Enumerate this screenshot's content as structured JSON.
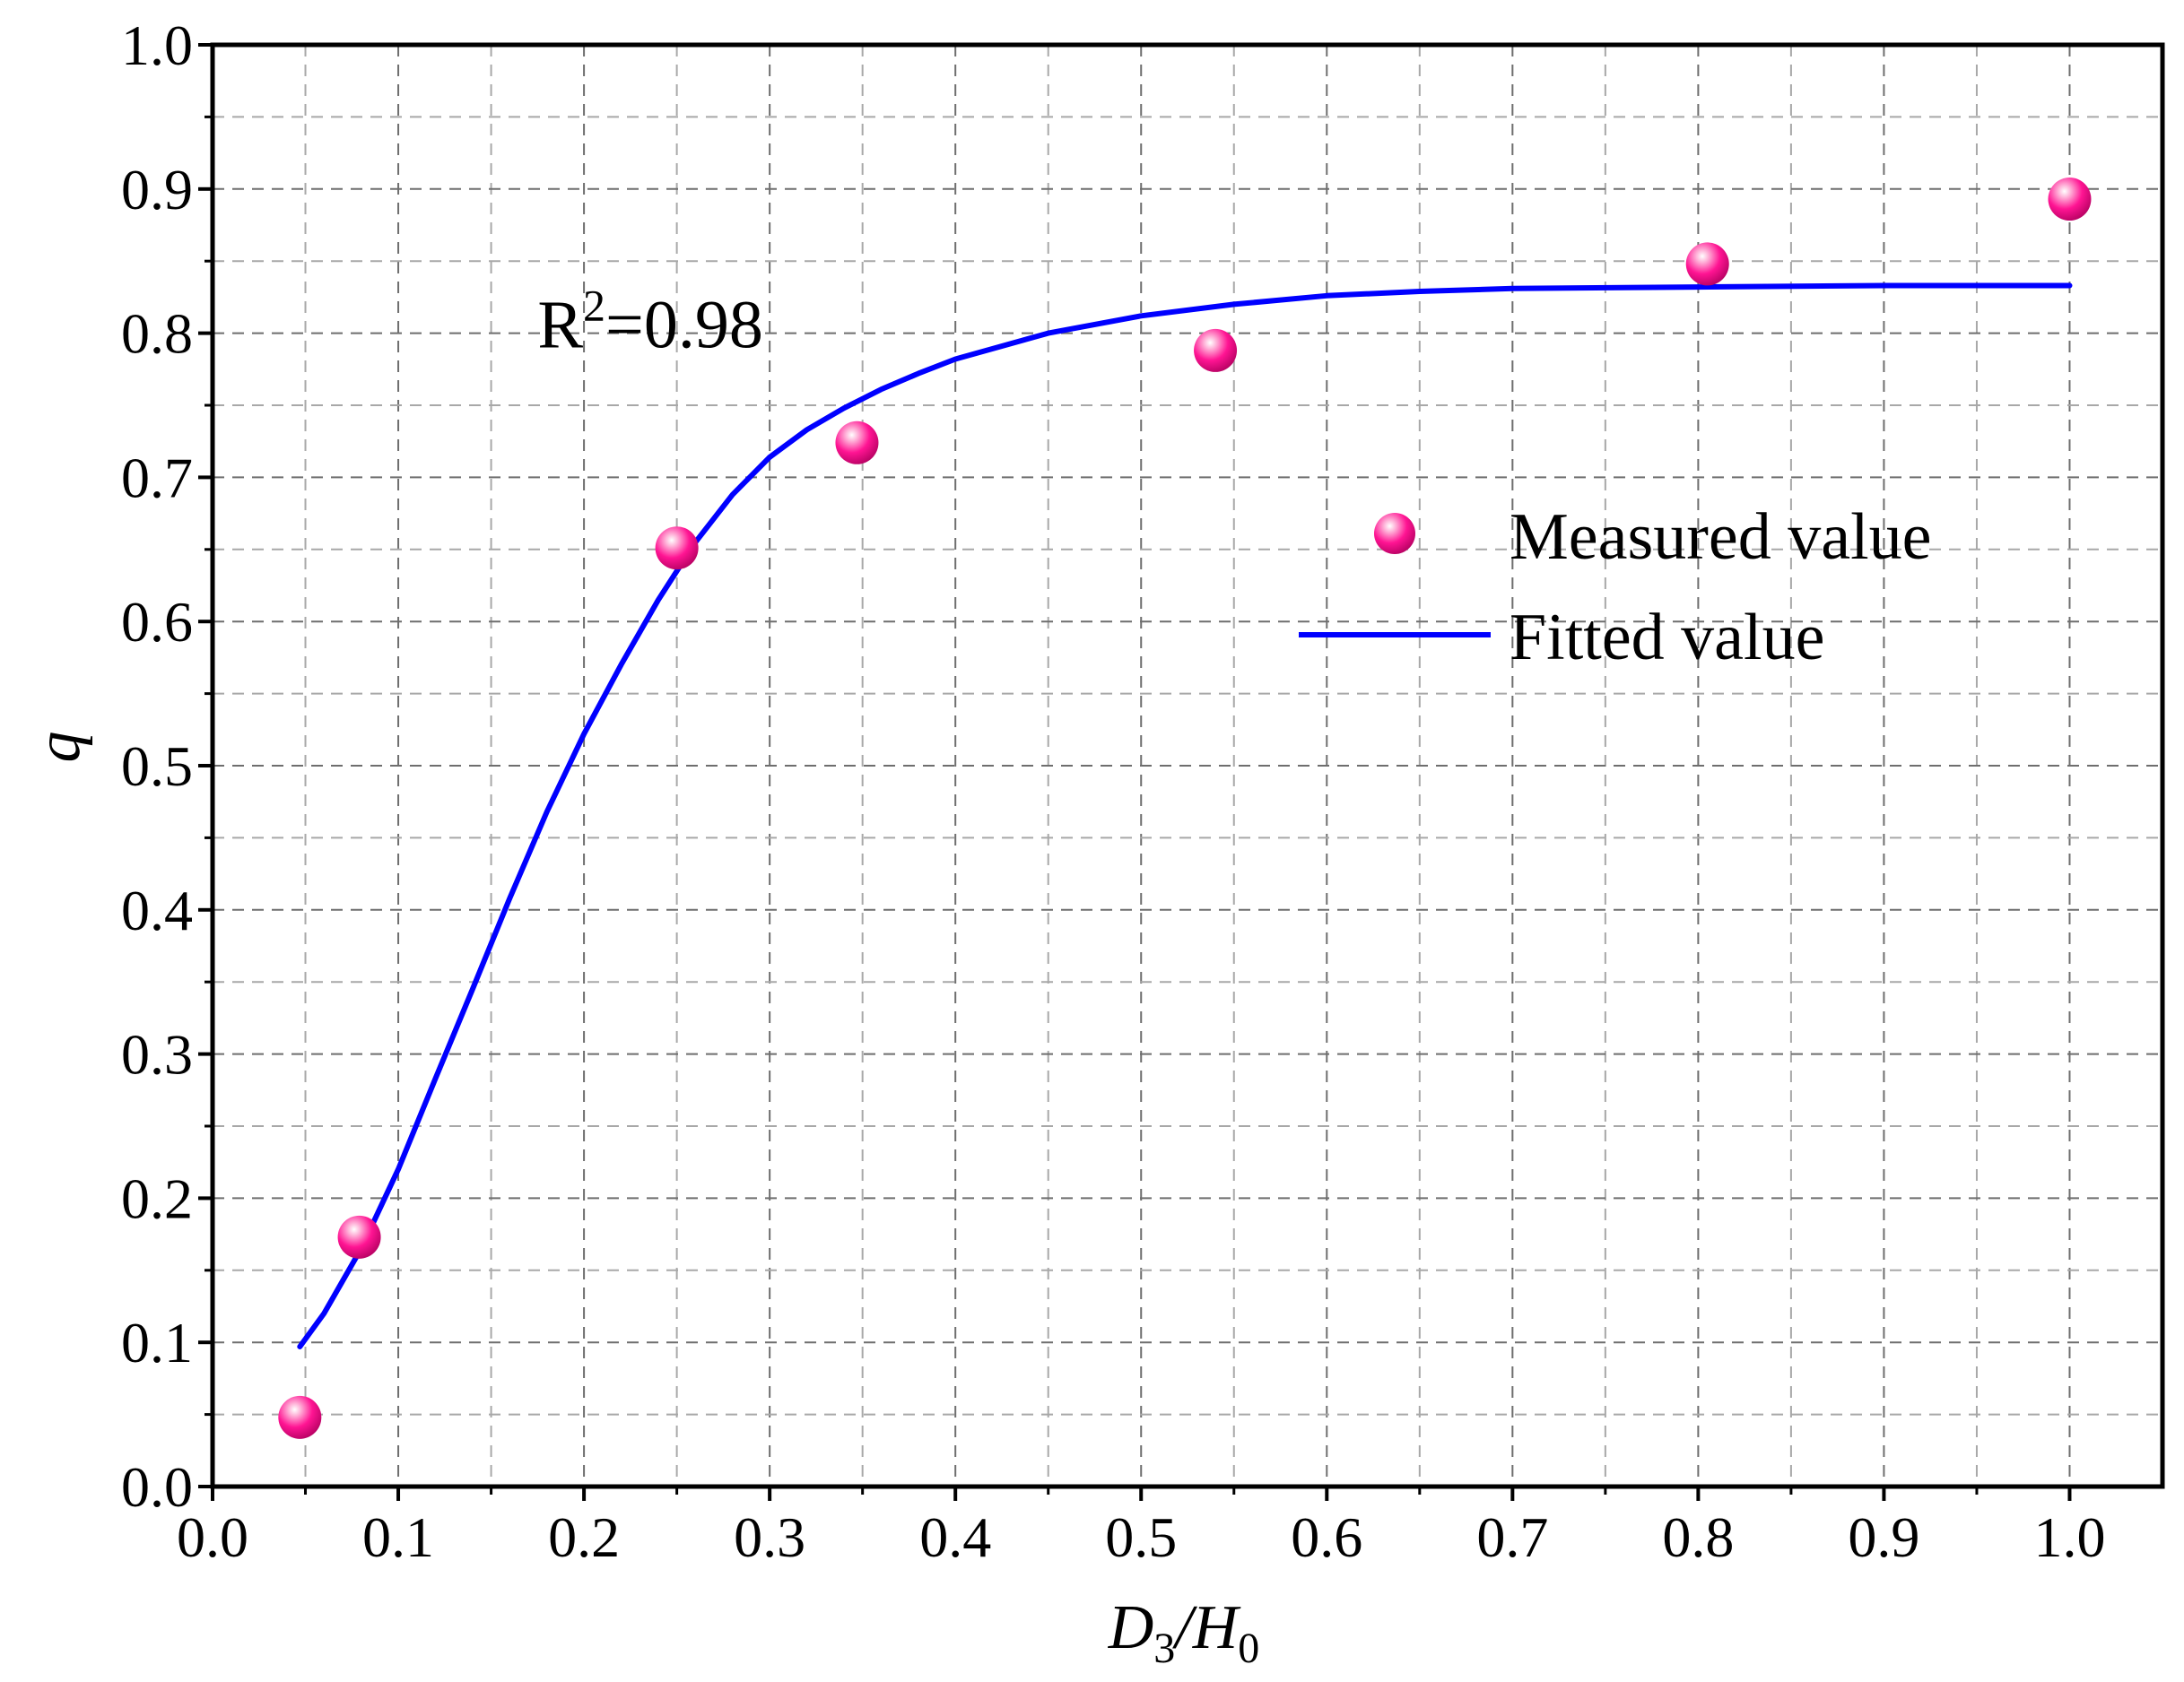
{
  "chart_data": {
    "type": "scatter",
    "title": "",
    "xlabel": {
      "main": "D",
      "sub1": "3",
      "sep": "/H",
      "sub2": "0"
    },
    "ylabel": "q",
    "xlim": [
      0.0,
      1.05
    ],
    "ylim": [
      0.0,
      1.0
    ],
    "xticks": [
      {
        "value": 0.0,
        "label": "0.0"
      },
      {
        "value": 0.1,
        "label": "0.1"
      },
      {
        "value": 0.2,
        "label": "0.2"
      },
      {
        "value": 0.3,
        "label": "0.3"
      },
      {
        "value": 0.4,
        "label": "0.4"
      },
      {
        "value": 0.5,
        "label": "0.5"
      },
      {
        "value": 0.6,
        "label": "0.6"
      },
      {
        "value": 0.7,
        "label": "0.7"
      },
      {
        "value": 0.8,
        "label": "0.8"
      },
      {
        "value": 0.9,
        "label": "0.9"
      },
      {
        "value": 1.0,
        "label": "1.0"
      }
    ],
    "yticks": [
      {
        "value": 0.0,
        "label": "0.0"
      },
      {
        "value": 0.1,
        "label": "0.1"
      },
      {
        "value": 0.2,
        "label": "0.2"
      },
      {
        "value": 0.3,
        "label": "0.3"
      },
      {
        "value": 0.4,
        "label": "0.4"
      },
      {
        "value": 0.5,
        "label": "0.5"
      },
      {
        "value": 0.6,
        "label": "0.6"
      },
      {
        "value": 0.7,
        "label": "0.7"
      },
      {
        "value": 0.8,
        "label": "0.8"
      },
      {
        "value": 0.9,
        "label": "0.9"
      },
      {
        "value": 1.0,
        "label": "1.0"
      }
    ],
    "minor_step_x": 0.05,
    "minor_step_y": 0.05,
    "grid": true,
    "annotation": {
      "base": "R",
      "sup": "2",
      "rest": "=0.98",
      "x": 0.175,
      "y": 0.79
    },
    "legend": {
      "position": "center-right"
    },
    "series": [
      {
        "name": "Measured value",
        "kind": "scatter",
        "color": "#ff1493",
        "points": [
          {
            "x": 0.047,
            "y": 0.048
          },
          {
            "x": 0.079,
            "y": 0.173
          },
          {
            "x": 0.25,
            "y": 0.651
          },
          {
            "x": 0.347,
            "y": 0.724
          },
          {
            "x": 0.54,
            "y": 0.788
          },
          {
            "x": 0.805,
            "y": 0.848
          },
          {
            "x": 1.0,
            "y": 0.893
          }
        ]
      },
      {
        "name": "Fitted value",
        "kind": "line",
        "color": "#0000ff",
        "points": [
          {
            "x": 0.047,
            "y": 0.097
          },
          {
            "x": 0.06,
            "y": 0.12
          },
          {
            "x": 0.08,
            "y": 0.165
          },
          {
            "x": 0.1,
            "y": 0.22
          },
          {
            "x": 0.12,
            "y": 0.283
          },
          {
            "x": 0.14,
            "y": 0.345
          },
          {
            "x": 0.16,
            "y": 0.408
          },
          {
            "x": 0.18,
            "y": 0.468
          },
          {
            "x": 0.2,
            "y": 0.522
          },
          {
            "x": 0.22,
            "y": 0.57
          },
          {
            "x": 0.24,
            "y": 0.615
          },
          {
            "x": 0.26,
            "y": 0.655
          },
          {
            "x": 0.28,
            "y": 0.688
          },
          {
            "x": 0.3,
            "y": 0.714
          },
          {
            "x": 0.32,
            "y": 0.733
          },
          {
            "x": 0.34,
            "y": 0.748
          },
          {
            "x": 0.36,
            "y": 0.761
          },
          {
            "x": 0.38,
            "y": 0.772
          },
          {
            "x": 0.4,
            "y": 0.782
          },
          {
            "x": 0.45,
            "y": 0.8
          },
          {
            "x": 0.5,
            "y": 0.812
          },
          {
            "x": 0.55,
            "y": 0.82
          },
          {
            "x": 0.6,
            "y": 0.826
          },
          {
            "x": 0.65,
            "y": 0.829
          },
          {
            "x": 0.7,
            "y": 0.831
          },
          {
            "x": 0.8,
            "y": 0.832
          },
          {
            "x": 0.9,
            "y": 0.833
          },
          {
            "x": 1.0,
            "y": 0.833
          }
        ]
      }
    ]
  }
}
